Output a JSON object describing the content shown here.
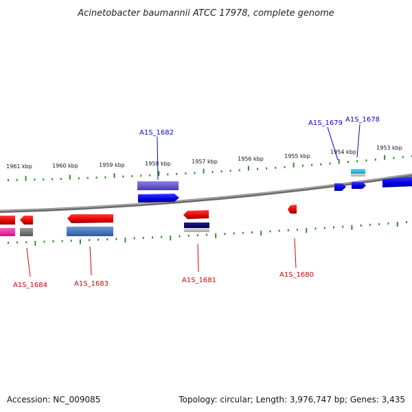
{
  "title": "Acinetobacter baumannii ATCC 17978, complete genome",
  "footer": {
    "accession": "Accession: NC_009085",
    "topology": "Topology: circular; Length: 3,976,747 bp; Genes: 3,435"
  },
  "scale_labels": [
    "1961 kbp",
    "1960 kbp",
    "1959 kbp",
    "1958 kbp",
    "1957 kbp",
    "1956 kbp",
    "1955 kbp",
    "1954 kbp",
    "1953 kbp"
  ],
  "gene_labels": {
    "forward": [
      "A1S_1682",
      "A1S_1679",
      "A1S_1678"
    ],
    "reverse": [
      "A1S_1684",
      "A1S_1683",
      "A1S_1681",
      "A1S_1680"
    ]
  },
  "colors": {
    "forward_label": "#0000cc",
    "reverse_label": "#cc0000",
    "tick": "#2e8b2e",
    "backbone": "#808080"
  }
}
